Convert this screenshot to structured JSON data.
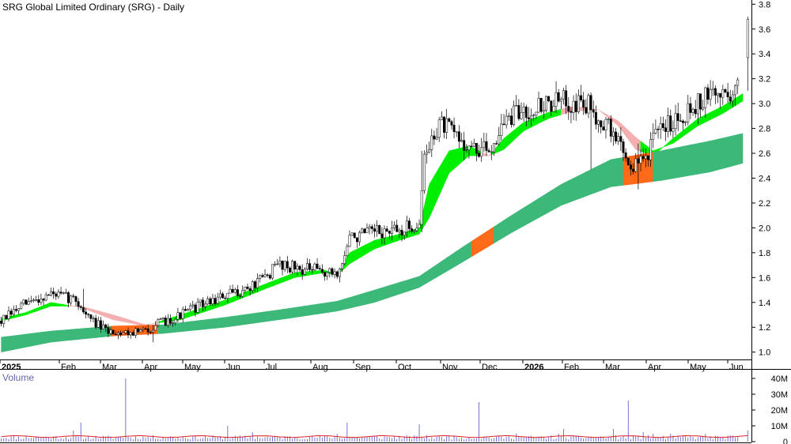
{
  "chart_data": {
    "type": "candlestick",
    "title": "SRG Global Limited Ordinary (SRG) - Daily",
    "volume_label": "Volume",
    "x_labels": [
      "2025",
      "Feb",
      "Mar",
      "Apr",
      "May",
      "Jun",
      "Jul",
      "Aug",
      "Sep",
      "Oct",
      "Nov",
      "Dec",
      "2026",
      "Feb",
      "Mar",
      "Apr",
      "May",
      "Jun"
    ],
    "price_ticks": [
      "3.8",
      "3.6",
      "3.4",
      "3.2",
      "3.0",
      "2.8",
      "2.6",
      "2.4",
      "2.2",
      "2.0",
      "1.8",
      "1.6",
      "1.4",
      "1.2",
      "1.0"
    ],
    "volume_ticks": [
      "40M",
      "30M",
      "20M",
      "10M",
      "0"
    ],
    "ylim": [
      0.92,
      3.85
    ],
    "volume_ylim": [
      0,
      42
    ],
    "colors": {
      "candle": "#000000",
      "short_band_up": "#00ee00",
      "short_band_down": "#f4b0b0",
      "long_band_up": "#3cb878",
      "long_band_down": "#ff6a1a",
      "volume_bar": "#6666cc",
      "volume_ma": "#dd2222",
      "axis": "#000000"
    },
    "price_path": [
      [
        0,
        1.25
      ],
      [
        9,
        1.38
      ],
      [
        20,
        1.47
      ],
      [
        30,
        1.42
      ],
      [
        35,
        1.28
      ],
      [
        42,
        1.17
      ],
      [
        50,
        1.16
      ],
      [
        58,
        1.17
      ],
      [
        62,
        1.22
      ],
      [
        70,
        1.28
      ],
      [
        80,
        1.38
      ],
      [
        90,
        1.45
      ],
      [
        100,
        1.52
      ],
      [
        106,
        1.6
      ],
      [
        112,
        1.72
      ],
      [
        118,
        1.68
      ],
      [
        126,
        1.66
      ],
      [
        132,
        1.63
      ],
      [
        136,
        1.65
      ],
      [
        140,
        1.92
      ],
      [
        150,
        1.96
      ],
      [
        160,
        1.97
      ],
      [
        168,
        2.04
      ],
      [
        170,
        2.55
      ],
      [
        176,
        2.85
      ],
      [
        182,
        2.75
      ],
      [
        190,
        2.62
      ],
      [
        196,
        2.63
      ],
      [
        202,
        2.85
      ],
      [
        210,
        2.95
      ],
      [
        220,
        3.0
      ],
      [
        228,
        3.02
      ],
      [
        236,
        2.98
      ],
      [
        242,
        2.85
      ],
      [
        249,
        2.68
      ],
      [
        253,
        2.48
      ],
      [
        258,
        2.55
      ],
      [
        262,
        2.7
      ],
      [
        268,
        2.85
      ],
      [
        278,
        2.98
      ],
      [
        286,
        3.08
      ],
      [
        292,
        3.08
      ],
      [
        296,
        3.12
      ]
    ],
    "short_band": {
      "x": [
        0,
        10,
        20,
        32,
        45,
        58,
        72,
        90,
        105,
        118,
        130,
        135,
        140,
        150,
        160,
        168,
        172,
        180,
        188,
        196,
        202,
        210,
        220,
        230,
        240,
        248,
        255,
        262,
        270,
        280,
        290,
        298
      ],
      "a": [
        1.27,
        1.32,
        1.4,
        1.36,
        1.26,
        1.21,
        1.3,
        1.42,
        1.54,
        1.64,
        1.66,
        1.62,
        1.8,
        1.9,
        1.95,
        2.0,
        2.35,
        2.62,
        2.66,
        2.58,
        2.72,
        2.85,
        2.93,
        2.98,
        2.95,
        2.82,
        2.63,
        2.58,
        2.72,
        2.88,
        2.98,
        3.08
      ],
      "b": [
        1.25,
        1.3,
        1.37,
        1.37,
        1.3,
        1.22,
        1.26,
        1.38,
        1.5,
        1.6,
        1.64,
        1.62,
        1.71,
        1.83,
        1.9,
        1.95,
        2.08,
        2.44,
        2.58,
        2.58,
        2.63,
        2.78,
        2.88,
        2.94,
        2.95,
        2.86,
        2.73,
        2.62,
        2.68,
        2.82,
        2.92,
        3.02
      ],
      "down": [
        [
          27,
          63
        ],
        [
          225,
          257
        ],
        [
          193,
          197
        ]
      ]
    },
    "long_band": {
      "x": [
        0,
        20,
        45,
        65,
        90,
        115,
        135,
        150,
        168,
        185,
        205,
        225,
        245,
        265,
        285,
        298
      ],
      "a": [
        1.12,
        1.17,
        1.21,
        1.22,
        1.28,
        1.35,
        1.41,
        1.5,
        1.61,
        1.84,
        2.1,
        2.35,
        2.55,
        2.62,
        2.7,
        2.76
      ],
      "b": [
        1.0,
        1.08,
        1.13,
        1.15,
        1.2,
        1.27,
        1.33,
        1.4,
        1.52,
        1.72,
        1.96,
        2.18,
        2.33,
        2.38,
        2.45,
        2.52
      ],
      "down": [
        [
          44,
          63
        ],
        [
          189,
          198
        ],
        [
          250,
          262
        ]
      ]
    },
    "spikes": [
      {
        "i": 33,
        "h": 1.51,
        "l": 1.33
      },
      {
        "i": 61,
        "h": 1.22,
        "l": 1.08
      },
      {
        "i": 169,
        "h": 2.62,
        "l": 2.29
      },
      {
        "i": 237,
        "h": 2.98,
        "l": 2.47
      },
      {
        "i": 256,
        "h": 2.68,
        "l": 2.31
      },
      {
        "i": 300,
        "o": 3.37,
        "h": 3.7,
        "l": 3.35,
        "c": 3.68
      }
    ],
    "volume": {
      "base": 1.4,
      "ma_level": 3.2,
      "spikes": [
        [
          50,
          40
        ],
        [
          32,
          12
        ],
        [
          29,
          7
        ],
        [
          91,
          10
        ],
        [
          139,
          12
        ],
        [
          168,
          11
        ],
        [
          192,
          25
        ],
        [
          207,
          5
        ],
        [
          252,
          26
        ],
        [
          246,
          8
        ],
        [
          258,
          6
        ],
        [
          226,
          8
        ],
        [
          135,
          5
        ],
        [
          101,
          6
        ],
        [
          224,
          5
        ],
        [
          180,
          4
        ],
        [
          283,
          5
        ],
        [
          300,
          7
        ],
        [
          269,
          5
        ],
        [
          262,
          5
        ]
      ]
    },
    "grid": false
  }
}
